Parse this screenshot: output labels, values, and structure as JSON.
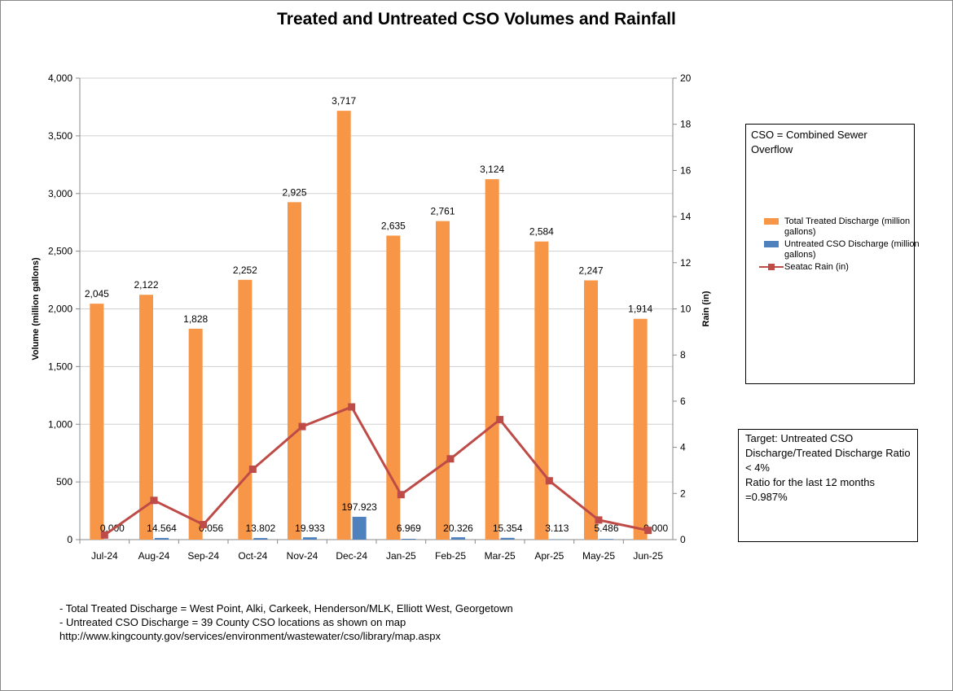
{
  "title": "Treated and Untreated CSO Volumes and Rainfall",
  "chart_data": {
    "type": "bar",
    "categories": [
      "Jul-24",
      "Aug-24",
      "Sep-24",
      "Oct-24",
      "Nov-24",
      "Dec-24",
      "Jan-25",
      "Feb-25",
      "Mar-25",
      "Apr-25",
      "May-25",
      "Jun-25"
    ],
    "series": [
      {
        "name": "Total Treated Discharge (million gallons)",
        "type": "bar",
        "axis": "left",
        "color": "#f79646",
        "values": [
          2045,
          2122,
          1828,
          2252,
          2925,
          3717,
          2635,
          2761,
          3124,
          2584,
          2247,
          1914
        ],
        "labels": [
          "2,045",
          "2,122",
          "1,828",
          "2,252",
          "2,925",
          "3,717",
          "2,635",
          "2,761",
          "3,124",
          "2,584",
          "2,247",
          "1,914"
        ]
      },
      {
        "name": "Untreated CSO Discharge (million gallons)",
        "type": "bar",
        "axis": "left",
        "color": "#4f81bd",
        "values": [
          0.0,
          14.564,
          0.056,
          13.802,
          19.933,
          197.923,
          6.969,
          20.326,
          15.354,
          3.113,
          5.486,
          0.0
        ],
        "labels": [
          "0.000",
          "14.564",
          "0.056",
          "13.802",
          "19.933",
          "197.923",
          "6.969",
          "20.326",
          "15.354",
          "3.113",
          "5.486",
          "0.000"
        ]
      },
      {
        "name": "Seatac Rain (in)",
        "type": "line",
        "axis": "right",
        "color": "#be4b48",
        "values": [
          0.2,
          1.7,
          0.65,
          3.05,
          4.9,
          5.75,
          1.95,
          3.5,
          5.2,
          2.55,
          0.85,
          0.4
        ]
      }
    ],
    "ylabel": "Volume (million gallons)",
    "y2label": "Rain  (in)",
    "ylim": [
      0,
      4000
    ],
    "yticks": [
      "0",
      "500",
      "1,000",
      "1,500",
      "2,000",
      "2,500",
      "3,000",
      "3,500",
      "4,000"
    ],
    "y2lim": [
      0,
      20
    ],
    "y2ticks": [
      "0",
      "2",
      "4",
      "6",
      "8",
      "10",
      "12",
      "14",
      "16",
      "18",
      "20"
    ],
    "legend_position": "right"
  },
  "legend": [
    {
      "label": "Total Treated Discharge (million gallons)",
      "color": "#f79646",
      "kind": "bar"
    },
    {
      "label": "Untreated CSO Discharge (million gallons)",
      "color": "#4f81bd",
      "kind": "bar"
    },
    {
      "label": "Seatac Rain (in)",
      "color": "#be4b48",
      "kind": "line"
    }
  ],
  "cso_box": {
    "text": "CSO = Combined Sewer Overflow"
  },
  "target_box": {
    "line1": "Target: Untreated CSO Discharge/Treated Discharge Ratio < 4%",
    "line2": "Ratio for the last 12 months =0.987%"
  },
  "notes": {
    "line1": "- Total Treated Discharge = West Point, Alki, Carkeek, Henderson/MLK, Elliott West, Georgetown",
    "line2": "- Untreated CSO Discharge = 39  County CSO locations as shown on map",
    "line3": "http://www.kingcounty.gov/services/environment/wastewater/cso/library/map.aspx"
  }
}
